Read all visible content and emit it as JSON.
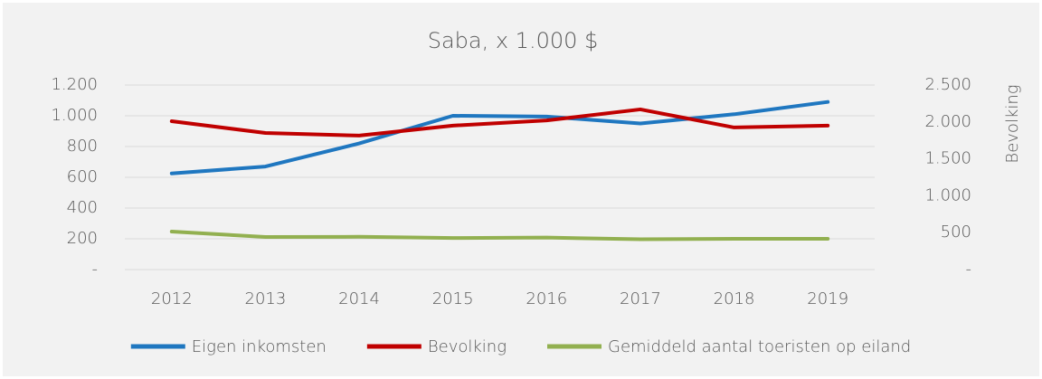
{
  "chart_data": {
    "type": "line",
    "title": "Saba, x 1.000 $",
    "categories": [
      "2012",
      "2013",
      "2014",
      "2015",
      "2016",
      "2017",
      "2018",
      "2019"
    ],
    "series": [
      {
        "name": "Eigen inkomsten",
        "color": "#1f77c0",
        "values": [
          625,
          670,
          820,
          1000,
          995,
          950,
          1010,
          1090
        ]
      },
      {
        "name": "Bevolking",
        "color": "#c00000",
        "axis": "y2",
        "values": [
          2010,
          1850,
          1815,
          1950,
          2020,
          2170,
          1925,
          1950
        ]
      },
      {
        "name": "Gemiddeld aantal toeristen op eiland",
        "color": "#92b050",
        "values": [
          247,
          212,
          213,
          205,
          208,
          197,
          200,
          200
        ]
      }
    ],
    "ylim": [
      0,
      1200
    ],
    "yticks": [
      {
        "value": 0,
        "label": "-"
      },
      200,
      400,
      600,
      800,
      {
        "value": 1000,
        "label": "1.000"
      },
      {
        "value": 1200,
        "label": "1.200"
      }
    ],
    "y2lim": [
      0,
      2500
    ],
    "y2ticks": [
      {
        "value": 0,
        "label": "-"
      },
      500,
      {
        "value": 1000,
        "label": "1.000"
      },
      {
        "value": 1500,
        "label": "1.500"
      },
      {
        "value": 2000,
        "label": "2.000"
      },
      {
        "value": 2500,
        "label": "2.500"
      }
    ],
    "y2label": "Bevolking",
    "grid": true,
    "legend": "bottom"
  }
}
